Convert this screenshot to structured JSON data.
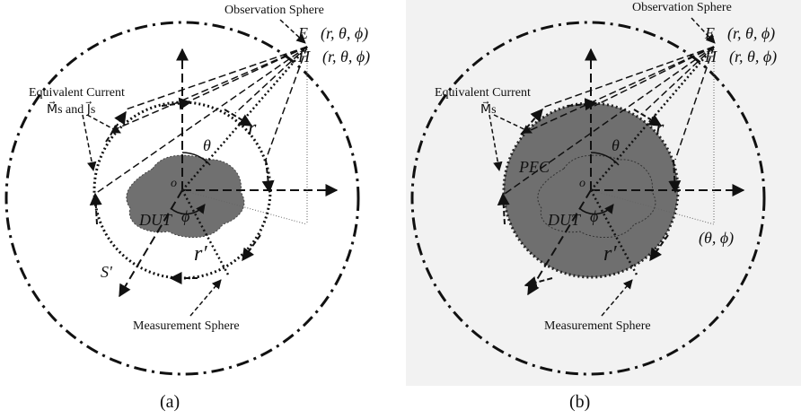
{
  "panels": [
    {
      "caption": "(a)",
      "observation_label": "Observation Sphere",
      "e_field": "E⃗(r, θ, ϕ)",
      "h_field": "H⃗(r, θ, ϕ)",
      "current_title": "Equivalent Current",
      "current_sub": "M⃗s and J⃗s",
      "origin": "o",
      "r_label": "r",
      "rp_label": "r′",
      "theta": "θ",
      "phi": "ϕ",
      "dut": "DUT",
      "s_prime": "S'",
      "measurement_label": "Measurement Sphere"
    },
    {
      "caption": "(b)",
      "observation_label": "Observation Sphere",
      "e_field": "E⃗(r, θ, ϕ)",
      "h_field": "H⃗(r, θ, ϕ)",
      "current_title": "Equivalent Current",
      "current_sub": "M⃗s",
      "origin": "o",
      "r_label": "r",
      "rp_label": "r′",
      "theta": "θ",
      "phi": "ϕ",
      "dut": "DUT",
      "pec": "PEC",
      "angle_pair": "(θ, ϕ)",
      "measurement_label": "Measurement Sphere"
    }
  ],
  "colors": {
    "line": "#111111",
    "dut_fill": "#707070",
    "pec_fill": "#6f6f6f",
    "panel_b_bg": "#f2f2f2"
  }
}
